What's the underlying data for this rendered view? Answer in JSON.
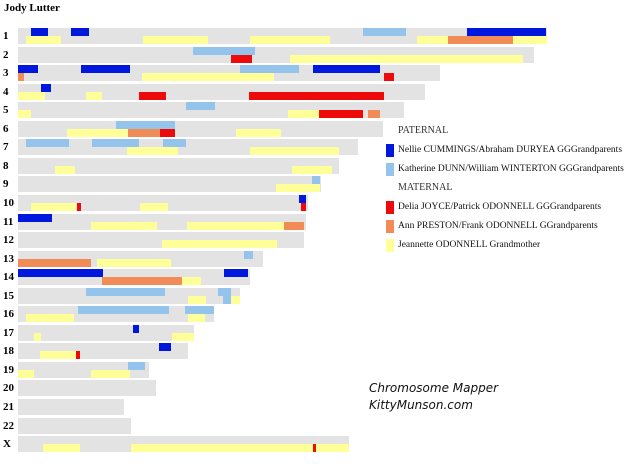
{
  "title": "Jody Lutter",
  "colors": {
    "bar": "#e3e3e3",
    "dark_blue": "#0018de",
    "light_blue": "#94c4ec",
    "red": "#ed0a0a",
    "orange": "#f28c57",
    "yellow": "#ffff99"
  },
  "legend": {
    "paternal_heading": "PATERNAL",
    "maternal_heading": "MATERNAL",
    "items": {
      "dark_blue": "Nellie CUMMINGS/Abraham DURYEA GGGrandparents",
      "light_blue": "Katherine DUNN/William WINTERTON GGGrandparents",
      "red": "Delia JOYCE/Patrick ODONNELL GGGrandparents",
      "orange": "Ann PRESTON/Frank ODONNELL GGrandparents",
      "yellow": "Jeannette ODONNELL Grandmother"
    }
  },
  "credit": {
    "line1": "Chromosome Mapper",
    "line2": "KittyMunson.com"
  },
  "chromosomes": [
    {
      "label": "1",
      "length": 529,
      "segments": [
        {
          "c": "dark_blue",
          "r": 0,
          "s": 13,
          "e": 30
        },
        {
          "c": "dark_blue",
          "r": 0,
          "s": 53,
          "e": 71
        },
        {
          "c": "light_blue",
          "r": 0,
          "s": 345,
          "e": 388
        },
        {
          "c": "dark_blue",
          "r": 0,
          "s": 449,
          "e": 528
        },
        {
          "c": "yellow",
          "r": 1,
          "s": 8,
          "e": 43
        },
        {
          "c": "yellow",
          "r": 1,
          "s": 125,
          "e": 190
        },
        {
          "c": "yellow",
          "r": 1,
          "s": 232,
          "e": 312
        },
        {
          "c": "yellow",
          "r": 1,
          "s": 399,
          "e": 430
        },
        {
          "c": "orange",
          "r": 1,
          "s": 430,
          "e": 495
        },
        {
          "c": "yellow",
          "r": 1,
          "s": 495,
          "e": 529
        }
      ]
    },
    {
      "label": "2",
      "length": 516,
      "segments": [
        {
          "c": "light_blue",
          "r": 0,
          "s": 175,
          "e": 237
        },
        {
          "c": "red",
          "r": 1,
          "s": 213,
          "e": 234
        },
        {
          "c": "yellow",
          "r": 1,
          "s": 272,
          "e": 505
        }
      ]
    },
    {
      "label": "3",
      "length": 422,
      "segments": [
        {
          "c": "dark_blue",
          "r": 0,
          "s": 0,
          "e": 20
        },
        {
          "c": "dark_blue",
          "r": 0,
          "s": 63,
          "e": 112
        },
        {
          "c": "light_blue",
          "r": 0,
          "s": 222,
          "e": 281
        },
        {
          "c": "dark_blue",
          "r": 0,
          "s": 295,
          "e": 362
        },
        {
          "c": "orange",
          "r": 1,
          "s": 0,
          "e": 6
        },
        {
          "c": "yellow",
          "r": 1,
          "s": 124,
          "e": 256
        },
        {
          "c": "red",
          "r": 1,
          "s": 366,
          "e": 376
        }
      ]
    },
    {
      "label": "4",
      "length": 407,
      "segments": [
        {
          "c": "dark_blue",
          "r": 0,
          "s": 23,
          "e": 33
        },
        {
          "c": "yellow",
          "r": 1,
          "s": 0,
          "e": 27
        },
        {
          "c": "yellow",
          "r": 1,
          "s": 68,
          "e": 84
        },
        {
          "c": "red",
          "r": 1,
          "s": 121,
          "e": 148
        },
        {
          "c": "red",
          "r": 1,
          "s": 231,
          "e": 366
        }
      ]
    },
    {
      "label": "5",
      "length": 386,
      "segments": [
        {
          "c": "light_blue",
          "r": 0,
          "s": 168,
          "e": 197
        },
        {
          "c": "yellow",
          "r": 1,
          "s": 0,
          "e": 13
        },
        {
          "c": "yellow",
          "r": 1,
          "s": 270,
          "e": 301
        },
        {
          "c": "red",
          "r": 1,
          "s": 301,
          "e": 345
        },
        {
          "c": "orange",
          "r": 1,
          "s": 350,
          "e": 362
        }
      ]
    },
    {
      "label": "6",
      "length": 365,
      "segments": [
        {
          "c": "light_blue",
          "r": 0,
          "s": 98,
          "e": 157
        },
        {
          "c": "yellow",
          "r": 1,
          "s": 49,
          "e": 110
        },
        {
          "c": "orange",
          "r": 1,
          "s": 110,
          "e": 142
        },
        {
          "c": "red",
          "r": 1,
          "s": 142,
          "e": 157
        },
        {
          "c": "yellow",
          "r": 1,
          "s": 218,
          "e": 263
        }
      ]
    },
    {
      "label": "7",
      "length": 340,
      "segments": [
        {
          "c": "light_blue",
          "r": 0,
          "s": 8,
          "e": 51
        },
        {
          "c": "light_blue",
          "r": 0,
          "s": 74,
          "e": 121
        },
        {
          "c": "light_blue",
          "r": 0,
          "s": 145,
          "e": 168
        },
        {
          "c": "yellow",
          "r": 1,
          "s": 109,
          "e": 160
        },
        {
          "c": "yellow",
          "r": 1,
          "s": 232,
          "e": 321
        }
      ]
    },
    {
      "label": "8",
      "length": 321,
      "segments": [
        {
          "c": "yellow",
          "r": 1,
          "s": 37,
          "e": 57
        },
        {
          "c": "yellow",
          "r": 1,
          "s": 274,
          "e": 314
        }
      ]
    },
    {
      "label": "9",
      "length": 303,
      "segments": [
        {
          "c": "light_blue",
          "r": 0,
          "s": 294,
          "e": 302
        },
        {
          "c": "yellow",
          "r": 1,
          "s": 258,
          "e": 302
        }
      ]
    },
    {
      "label": "10",
      "length": 290,
      "segments": [
        {
          "c": "dark_blue",
          "r": 0,
          "s": 281,
          "e": 288
        },
        {
          "c": "yellow",
          "r": 1,
          "s": 13,
          "e": 58
        },
        {
          "c": "red",
          "r": 1,
          "s": 59,
          "e": 63
        },
        {
          "c": "yellow",
          "r": 1,
          "s": 122,
          "e": 150
        },
        {
          "c": "red",
          "r": 1,
          "s": 283,
          "e": 288
        }
      ]
    },
    {
      "label": "11",
      "length": 288,
      "segments": [
        {
          "c": "dark_blue",
          "r": 0,
          "s": 0,
          "e": 34
        },
        {
          "c": "yellow",
          "r": 1,
          "s": 73,
          "e": 139
        },
        {
          "c": "yellow",
          "r": 1,
          "s": 169,
          "e": 266
        },
        {
          "c": "orange",
          "r": 1,
          "s": 266,
          "e": 286
        }
      ]
    },
    {
      "label": "12",
      "length": 286,
      "segments": [
        {
          "c": "yellow",
          "r": 1,
          "s": 144,
          "e": 259
        }
      ]
    },
    {
      "label": "13",
      "length": 245,
      "segments": [
        {
          "c": "light_blue",
          "r": 0,
          "s": 226,
          "e": 235
        },
        {
          "c": "orange",
          "r": 1,
          "s": 0,
          "e": 73
        },
        {
          "c": "yellow",
          "r": 1,
          "s": 79,
          "e": 153
        }
      ]
    },
    {
      "label": "14",
      "length": 232,
      "segments": [
        {
          "c": "dark_blue",
          "r": 0,
          "s": 0,
          "e": 85
        },
        {
          "c": "dark_blue",
          "r": 0,
          "s": 206,
          "e": 230
        },
        {
          "c": "orange",
          "r": 1,
          "s": 84,
          "e": 164
        },
        {
          "c": "yellow",
          "r": 1,
          "s": 164,
          "e": 183
        }
      ]
    },
    {
      "label": "15",
      "length": 222,
      "segments": [
        {
          "c": "light_blue",
          "r": 0,
          "s": 68,
          "e": 147
        },
        {
          "c": "light_blue",
          "r": 0,
          "s": 200,
          "e": 213
        },
        {
          "c": "yellow",
          "r": 1,
          "s": 170,
          "e": 188
        },
        {
          "c": "light_blue",
          "r": 1,
          "s": 205,
          "e": 213
        },
        {
          "c": "yellow",
          "r": 1,
          "s": 213,
          "e": 222
        }
      ]
    },
    {
      "label": "16",
      "length": 196,
      "segments": [
        {
          "c": "light_blue",
          "r": 0,
          "s": 60,
          "e": 151
        },
        {
          "c": "light_blue",
          "r": 0,
          "s": 167,
          "e": 196
        },
        {
          "c": "yellow",
          "r": 1,
          "s": 8,
          "e": 56
        },
        {
          "c": "yellow",
          "r": 1,
          "s": 170,
          "e": 187
        }
      ]
    },
    {
      "label": "17",
      "length": 176,
      "segments": [
        {
          "c": "dark_blue",
          "r": 0,
          "s": 115,
          "e": 121
        },
        {
          "c": "yellow",
          "r": 1,
          "s": 16,
          "e": 23
        },
        {
          "c": "yellow",
          "r": 1,
          "s": 154,
          "e": 176
        }
      ]
    },
    {
      "label": "18",
      "length": 170,
      "segments": [
        {
          "c": "dark_blue",
          "r": 0,
          "s": 141,
          "e": 153
        },
        {
          "c": "yellow",
          "r": 1,
          "s": 22,
          "e": 58
        },
        {
          "c": "red",
          "r": 1,
          "s": 58,
          "e": 62
        }
      ]
    },
    {
      "label": "19",
      "length": 131,
      "segments": [
        {
          "c": "light_blue",
          "r": 0,
          "s": 110,
          "e": 127
        },
        {
          "c": "yellow",
          "r": 1,
          "s": 0,
          "e": 16
        },
        {
          "c": "yellow",
          "r": 1,
          "s": 73,
          "e": 112
        }
      ]
    },
    {
      "label": "20",
      "length": 138,
      "segments": []
    },
    {
      "label": "21",
      "length": 106,
      "segments": []
    },
    {
      "label": "22",
      "length": 113,
      "segments": []
    },
    {
      "label": "X",
      "length": 331,
      "segments": [
        {
          "c": "yellow",
          "r": 1,
          "s": 25,
          "e": 62
        },
        {
          "c": "yellow",
          "r": 1,
          "s": 113,
          "e": 295
        },
        {
          "c": "red",
          "r": 1,
          "s": 295,
          "e": 298
        },
        {
          "c": "yellow",
          "r": 1,
          "s": 298,
          "e": 331
        }
      ]
    }
  ]
}
